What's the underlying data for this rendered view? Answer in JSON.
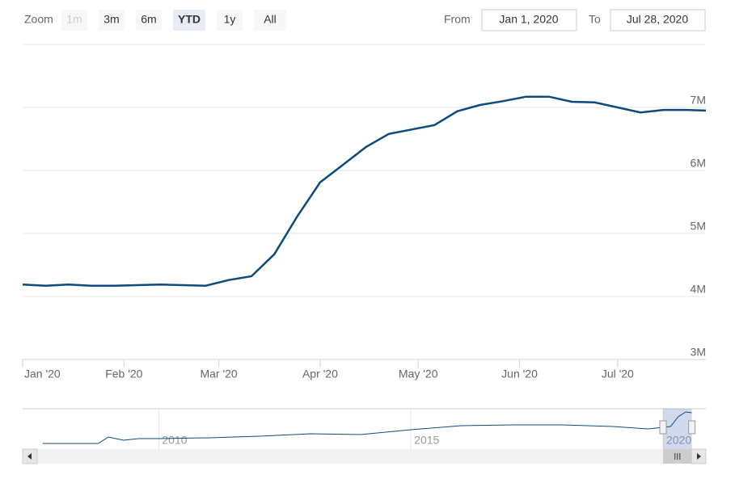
{
  "range_selector": {
    "zoom_label": "Zoom",
    "buttons": [
      "1m",
      "3m",
      "6m",
      "YTD",
      "1y",
      "All"
    ],
    "selected": "YTD",
    "disabled": [
      "1m"
    ],
    "from_label": "From",
    "from": "Jan 1, 2020",
    "to_label": "To",
    "to": "Jul 28, 2020"
  },
  "chart_data": {
    "type": "line",
    "color": "#0d4a7d",
    "x": [
      "2020-01-01",
      "2020-01-08",
      "2020-01-15",
      "2020-01-22",
      "2020-01-29",
      "2020-02-05",
      "2020-02-12",
      "2020-02-19",
      "2020-02-26",
      "2020-03-04",
      "2020-03-11",
      "2020-03-18",
      "2020-03-25",
      "2020-04-01",
      "2020-04-08",
      "2020-04-15",
      "2020-04-22",
      "2020-04-29",
      "2020-05-06",
      "2020-05-13",
      "2020-05-20",
      "2020-05-27",
      "2020-06-03",
      "2020-06-10",
      "2020-06-17",
      "2020-06-24",
      "2020-07-01",
      "2020-07-08",
      "2020-07-15",
      "2020-07-22",
      "2020-07-28"
    ],
    "values": [
      4190000,
      4170000,
      4190000,
      4170000,
      4170000,
      4180000,
      4190000,
      4180000,
      4170000,
      4260000,
      4320000,
      4670000,
      5270000,
      5810000,
      6090000,
      6370000,
      6580000,
      6650000,
      6720000,
      6940000,
      7040000,
      7100000,
      7170000,
      7170000,
      7090000,
      7080000,
      7000000,
      6920000,
      6960000,
      6960000,
      6950000
    ],
    "xlim": [
      "2020-01-01",
      "2020-07-28"
    ],
    "xticks": [
      {
        "value": "2020-01-01",
        "label": "Jan '20"
      },
      {
        "value": "2020-02-01",
        "label": "Feb '20"
      },
      {
        "value": "2020-03-01",
        "label": "Mar '20"
      },
      {
        "value": "2020-04-01",
        "label": "Apr '20"
      },
      {
        "value": "2020-05-01",
        "label": "May '20"
      },
      {
        "value": "2020-06-01",
        "label": "Jun '20"
      },
      {
        "value": "2020-07-01",
        "label": "Jul '20"
      }
    ],
    "ylim": [
      3000000,
      8000000
    ],
    "yticks": [
      {
        "value": 3000000,
        "label": "3M"
      },
      {
        "value": 4000000,
        "label": "4M"
      },
      {
        "value": 5000000,
        "label": "5M"
      },
      {
        "value": 6000000,
        "label": "6M"
      },
      {
        "value": 7000000,
        "label": "7M"
      }
    ],
    "grid": true,
    "navigator": {
      "x": [
        2007.7,
        2008.8,
        2009.0,
        2009.3,
        2009.6,
        2010,
        2011,
        2012,
        2013,
        2014,
        2015,
        2016,
        2017,
        2018,
        2019,
        2019.7,
        2020.0,
        2020.15,
        2020.3,
        2020.45,
        2020.57
      ],
      "values": [
        2940000,
        2940000,
        3880000,
        3410000,
        3650000,
        3650000,
        3760000,
        4000000,
        4350000,
        4240000,
        4940000,
        5530000,
        5650000,
        5650000,
        5410000,
        5060000,
        5290000,
        5410000,
        6820000,
        7530000,
        7410000
      ],
      "xlim": [
        2007.3,
        2020.85
      ],
      "ylim": [
        0,
        8000000
      ],
      "xticks": [
        2010,
        2015,
        2020
      ]
    }
  }
}
